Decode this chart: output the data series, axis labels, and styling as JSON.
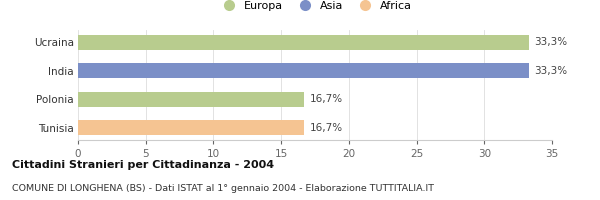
{
  "categories": [
    "Tunisia",
    "Polonia",
    "India",
    "Ucraina"
  ],
  "values": [
    16.7,
    16.7,
    33.3,
    33.3
  ],
  "colors": [
    "#f5c492",
    "#b8cc8e",
    "#7b8fc7",
    "#b8cc8e"
  ],
  "labels": [
    "16,7%",
    "16,7%",
    "33,3%",
    "33,3%"
  ],
  "xlim": [
    0,
    35
  ],
  "xticks": [
    0,
    5,
    10,
    15,
    20,
    25,
    30,
    35
  ],
  "legend_items": [
    {
      "label": "Europa",
      "color": "#b8cc8e"
    },
    {
      "label": "Asia",
      "color": "#7b8fc7"
    },
    {
      "label": "Africa",
      "color": "#f5c492"
    }
  ],
  "title": "Cittadini Stranieri per Cittadinanza - 2004",
  "subtitle": "COMUNE DI LONGHENA (BS) - Dati ISTAT al 1° gennaio 2004 - Elaborazione TUTTITALIA.IT",
  "background_color": "#ffffff",
  "bar_height": 0.52
}
